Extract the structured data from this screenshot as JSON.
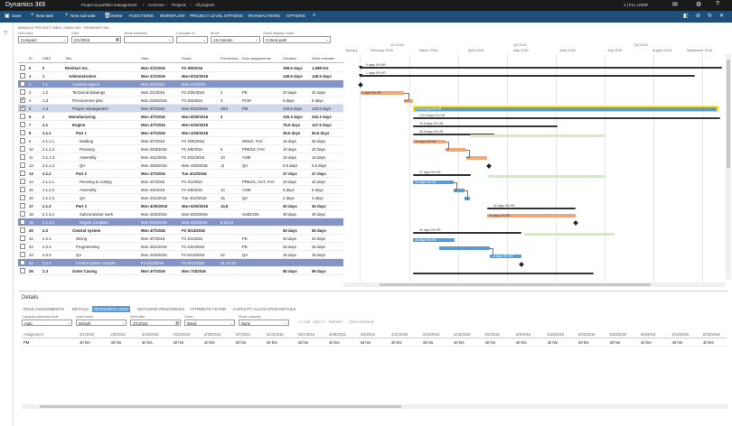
{
  "app": {
    "name": "Dynamics 365",
    "breadcrumb": [
      "Project & portfolio management",
      "Common",
      "Projects",
      "All projects"
    ],
    "user": "4 | Fru; USMF",
    "toolbar_icons": [
      "message-icon",
      "gear-icon",
      "help-icon"
    ]
  },
  "commands": [
    {
      "name": "save",
      "label": "Save",
      "icon": "save-icon"
    },
    {
      "name": "new-task",
      "label": "New task",
      "icon": "plus-icon"
    },
    {
      "name": "new-sub-task",
      "label": "New sub task",
      "icon": "plus-icon"
    },
    {
      "name": "delete",
      "label": "Delete",
      "icon": "delete-icon"
    },
    {
      "name": "functions",
      "label": "FUNCTIONS"
    },
    {
      "name": "workflow",
      "label": "WORKFLOW"
    },
    {
      "name": "project-level-options",
      "label": "PROJECT LEVEL OPTIONS"
    },
    {
      "name": "transactions",
      "label": "TRANSACTIONS"
    },
    {
      "name": "options",
      "label": "OPTIONS"
    }
  ],
  "caption": "MANAGE PROJECT WBS | 00000-000 : REINHART INC.",
  "filters": [
    {
      "label": "Grid view",
      "value": "Compact"
    },
    {
      "label": "Start",
      "value": "2/1/2016"
    },
    {
      "label": "Show baseline",
      "value": ""
    },
    {
      "label": "Compare to",
      "value": ""
    },
    {
      "label": "Move",
      "value": "15 minutes"
    },
    {
      "label": "Gantt display mode",
      "value": "Critical path"
    }
  ],
  "grid": {
    "headers": [
      "ID",
      "WBS",
      "Title",
      "Start",
      "Finish",
      "Predecess...",
      "Role assignments",
      "Duration",
      "Work estimate"
    ],
    "rows": [
      {
        "id": "0",
        "wbs": "0",
        "title": "Reinhart Inc.",
        "level": 0,
        "start": "Mon 2/1/2016",
        "finish": "Fri 9/9/2016",
        "pred": "",
        "role": "",
        "dur": "159.5 days",
        "work": "1,098 hrs",
        "style": "sum",
        "check": ""
      },
      {
        "id": "1",
        "wbs": "1",
        "title": "Administration",
        "level": 1,
        "start": "Mon 2/1/2016",
        "finish": "Mon 8/22/2016",
        "pred": "",
        "role": "",
        "dur": "145.5 days",
        "work": "145.5 days",
        "style": "sum",
        "check": ""
      },
      {
        "id": "2",
        "wbs": "1.1",
        "title": "Contract signed",
        "level": 2,
        "start": "Mon 2/1/2016",
        "finish": "Mon 2/1/2016",
        "pred": "",
        "role": "",
        "dur": "",
        "work": "",
        "style": "ms",
        "check": ""
      },
      {
        "id": "3",
        "wbs": "1.2",
        "title": "Technical drawings",
        "level": 2,
        "start": "Mon 2/1/2016",
        "finish": "Fri 2/26/2016",
        "pred": "2",
        "role": "PE",
        "dur": "20 days",
        "work": "20 days",
        "style": "",
        "check": ""
      },
      {
        "id": "4",
        "wbs": "1.3",
        "title": "Procurement plan",
        "level": 2,
        "start": "Mon 2/29/2016",
        "finish": "Fri 3/4/2016",
        "pred": "3",
        "role": "PCM",
        "dur": "5 days",
        "work": "5 days",
        "style": "",
        "check": "✔"
      },
      {
        "id": "5",
        "wbs": "1.4",
        "title": "Project management",
        "level": 2,
        "start": "Mon 3/7/2016",
        "finish": "Mon 8/22/2016",
        "pred": "4SS",
        "role": "PM",
        "dur": "120.5 days",
        "work": "120.5 days",
        "style": "sel",
        "check": "✔"
      },
      {
        "id": "6",
        "wbs": "2",
        "title": "Manufacturing",
        "level": 1,
        "start": "Mon 3/7/2016",
        "finish": "Mon 8/29/2016",
        "pred": "4",
        "role": "",
        "dur": "120.3 days",
        "work": "242.3 days",
        "style": "sum",
        "check": ""
      },
      {
        "id": "7",
        "wbs": "2.1",
        "title": "Engine",
        "level": 2,
        "start": "Mon 3/7/2016",
        "finish": "Mon 6/20/2016",
        "pred": "",
        "role": "",
        "dur": "75.5 days",
        "work": "147.5 days",
        "style": "sum",
        "check": ""
      },
      {
        "id": "8",
        "wbs": "2.1.1",
        "title": "Part 1",
        "level": 3,
        "start": "Mon 3/7/2016",
        "finish": "Mon 4/25/2016",
        "pred": "",
        "role": "",
        "dur": "35.5 days",
        "work": "60.5 days",
        "style": "sum",
        "check": ""
      },
      {
        "id": "9",
        "wbs": "2.1.1.1",
        "title": "Molding",
        "level": 4,
        "start": "Mon 3/7/2016",
        "finish": "Fri 3/25/2016",
        "pred": "",
        "role": "MOLD, FAC",
        "dur": "15 days",
        "work": "30 days",
        "style": "",
        "check": ""
      },
      {
        "id": "10",
        "wbs": "2.1.1.2",
        "title": "Pressing",
        "level": 4,
        "start": "Mon 3/28/2016",
        "finish": "Fri 4/8/2016",
        "pred": "9",
        "role": "PRESS, FAC",
        "dur": "10 days",
        "work": "20 days",
        "style": "",
        "check": ""
      },
      {
        "id": "11",
        "wbs": "2.1.1.3",
        "title": "Assembly",
        "level": 4,
        "start": "Mon 4/11/2016",
        "finish": "Fri 4/22/2016",
        "pred": "10",
        "role": "ASM",
        "dur": "10 days",
        "work": "10 days",
        "style": "",
        "check": ""
      },
      {
        "id": "12",
        "wbs": "2.1.1.4",
        "title": "QA",
        "level": 4,
        "start": "Mon 4/25/2016",
        "finish": "Mon 4/25/2016",
        "pred": "11",
        "role": "QA",
        "dur": "0.5 days",
        "work": "0.5 days",
        "style": "",
        "check": ""
      },
      {
        "id": "13",
        "wbs": "2.1.2",
        "title": "Part 2",
        "level": 3,
        "start": "Mon 3/7/2016",
        "finish": "Tue 4/12/2016",
        "pred": "",
        "role": "",
        "dur": "27 days",
        "work": "47 days",
        "style": "sum",
        "check": ""
      },
      {
        "id": "14",
        "wbs": "2.1.2.1",
        "title": "Pressing & Cutting",
        "level": 4,
        "start": "Mon 3/7/2016",
        "finish": "Fri 4/1/2016",
        "pred": "",
        "role": "PRESS, CUT, FAC",
        "dur": "20 days",
        "work": "40 days",
        "style": "",
        "check": ""
      },
      {
        "id": "15",
        "wbs": "2.1.2.2",
        "title": "Assembly",
        "level": 4,
        "start": "Mon 4/4/2016",
        "finish": "Fri 4/8/2016",
        "pred": "14",
        "role": "ASM",
        "dur": "5 days",
        "work": "5 days",
        "style": "",
        "check": ""
      },
      {
        "id": "16",
        "wbs": "2.1.2.3",
        "title": "QA",
        "level": 4,
        "start": "Mon 4/11/2016",
        "finish": "Tue 4/12/2016",
        "pred": "15",
        "role": "QA",
        "dur": "2 days",
        "work": "2 days",
        "style": "",
        "check": ""
      },
      {
        "id": "17",
        "wbs": "2.1.3",
        "title": "Part 3",
        "level": 3,
        "start": "Mon 4/25/2016",
        "finish": "Mon 6/20/2016",
        "pred": "13,8",
        "role": "",
        "dur": "40 days",
        "work": "40 days",
        "style": "sum",
        "check": ""
      },
      {
        "id": "18",
        "wbs": "2.1.3.1",
        "title": "Subcontractor work",
        "level": 4,
        "start": "Mon 4/25/2016",
        "finish": "Mon 6/20/2016",
        "pred": "",
        "role": "SUBCON",
        "dur": "40 days",
        "work": "40 days",
        "style": "",
        "check": ""
      },
      {
        "id": "19",
        "wbs": "2.1.3.2",
        "title": "Engine complete",
        "level": 4,
        "start": "Mon 6/20/2016",
        "finish": "Mon 6/20/2016",
        "pred": "9,18,16",
        "role": "",
        "dur": "",
        "work": "",
        "style": "ms",
        "check": ""
      },
      {
        "id": "20",
        "wbs": "2.2",
        "title": "Control system",
        "level": 2,
        "start": "Mon 3/7/2016",
        "finish": "Fri 5/13/2016",
        "pred": "",
        "role": "",
        "dur": "50 days",
        "work": "50 days",
        "style": "sum",
        "check": ""
      },
      {
        "id": "21",
        "wbs": "2.2.1",
        "title": "Wiring",
        "level": 3,
        "start": "Mon 3/7/2016",
        "finish": "Fri 4/1/2016",
        "pred": "",
        "role": "PE",
        "dur": "20 days",
        "work": "20 days",
        "style": "",
        "check": ""
      },
      {
        "id": "22",
        "wbs": "2.2.2",
        "title": "Programming",
        "level": 3,
        "start": "Mon 3/21/2016",
        "finish": "Fri 4/22/2016",
        "pred": "",
        "role": "PE",
        "dur": "25 days",
        "work": "25 days",
        "style": "",
        "check": ""
      },
      {
        "id": "23",
        "wbs": "2.2.3",
        "title": "QA",
        "level": 3,
        "start": "Mon 4/25/2016",
        "finish": "Fri 5/13/2016",
        "pred": "22",
        "role": "QA",
        "dur": "15 days",
        "work": "15 days",
        "style": "",
        "check": ""
      },
      {
        "id": "24",
        "wbs": "2.2.4",
        "title": "Control system comple...",
        "level": 3,
        "start": "Fri 5/13/2016",
        "finish": "Fri 5/13/2016",
        "pred": "21,22,23",
        "role": "",
        "dur": "",
        "work": "",
        "style": "ms",
        "check": ""
      },
      {
        "id": "25",
        "wbs": "2.3",
        "title": "Outer Casing",
        "level": 2,
        "start": "Mon 3/7/2016",
        "finish": "Mon 7/4/2016",
        "pred": "",
        "role": "",
        "dur": "85 days",
        "work": "85 days",
        "style": "sum",
        "check": ""
      }
    ]
  },
  "gantt": {
    "quarters": [
      "Q1 2016",
      "Q2 2016",
      "Q3 2016"
    ],
    "months": [
      "January",
      "February 2016",
      "March 2016",
      "April 2016",
      "May 2016",
      "June 2016",
      "July 2016",
      "August 2016",
      "September 2016"
    ]
  },
  "details": {
    "title": "Details",
    "tabs": [
      "ROLE ASSIGNMENTS",
      "DETAILS",
      "RESOURCE LOAD",
      "MATCHING RESOURCES",
      "ATTRIBUTE FILTER",
      "CAPACITY ALLOCATION DETAILS"
    ],
    "active_tab": 2,
    "filters": [
      {
        "label": "Capacity planning mode",
        "value": "Auto"
      },
      {
        "label": "Load mode",
        "value": "Default"
      },
      {
        "label": "Start date",
        "value": "2/1/2016"
      },
      {
        "label": "Zoom",
        "value": "Week"
      },
      {
        "label": "Show capacity",
        "value": "None"
      }
    ],
    "buttons": [
      "<< Add",
      "Add >>",
      "Refresh",
      "Clear schedule"
    ],
    "columns": [
      "Assignment",
      "2/1/2016",
      "2/8/2016",
      "2/15/2016",
      "2/22/2016",
      "2/29/2016",
      "3/7/2016",
      "3/14/2016",
      "3/21/2016",
      "3/28/2016",
      "4/4/2016",
      "4/11/2016",
      "4/18/2016",
      "4/25/2016",
      "5/2/2016",
      "5/9/2016",
      "5/16/2016",
      "5/23/2016",
      "5/30/2016",
      "6/6/2016",
      "6/13/2016",
      "6/20/2016"
    ],
    "rows": [
      {
        "assignment": "PM",
        "values": [
          "40 hrs",
          "40 hrs",
          "40 hrs",
          "40 hrs",
          "40 hrs",
          "40 hrs",
          "40 hrs",
          "40 hrs",
          "40 hrs",
          "40 hrs",
          "40 hrs",
          "40 hrs",
          "40 hrs",
          "40 hrs",
          "40 hrs",
          "40 hrs",
          "40 hrs",
          "40 hrs",
          "40 hrs",
          "40 hrs",
          "40 hrs"
        ]
      }
    ]
  }
}
